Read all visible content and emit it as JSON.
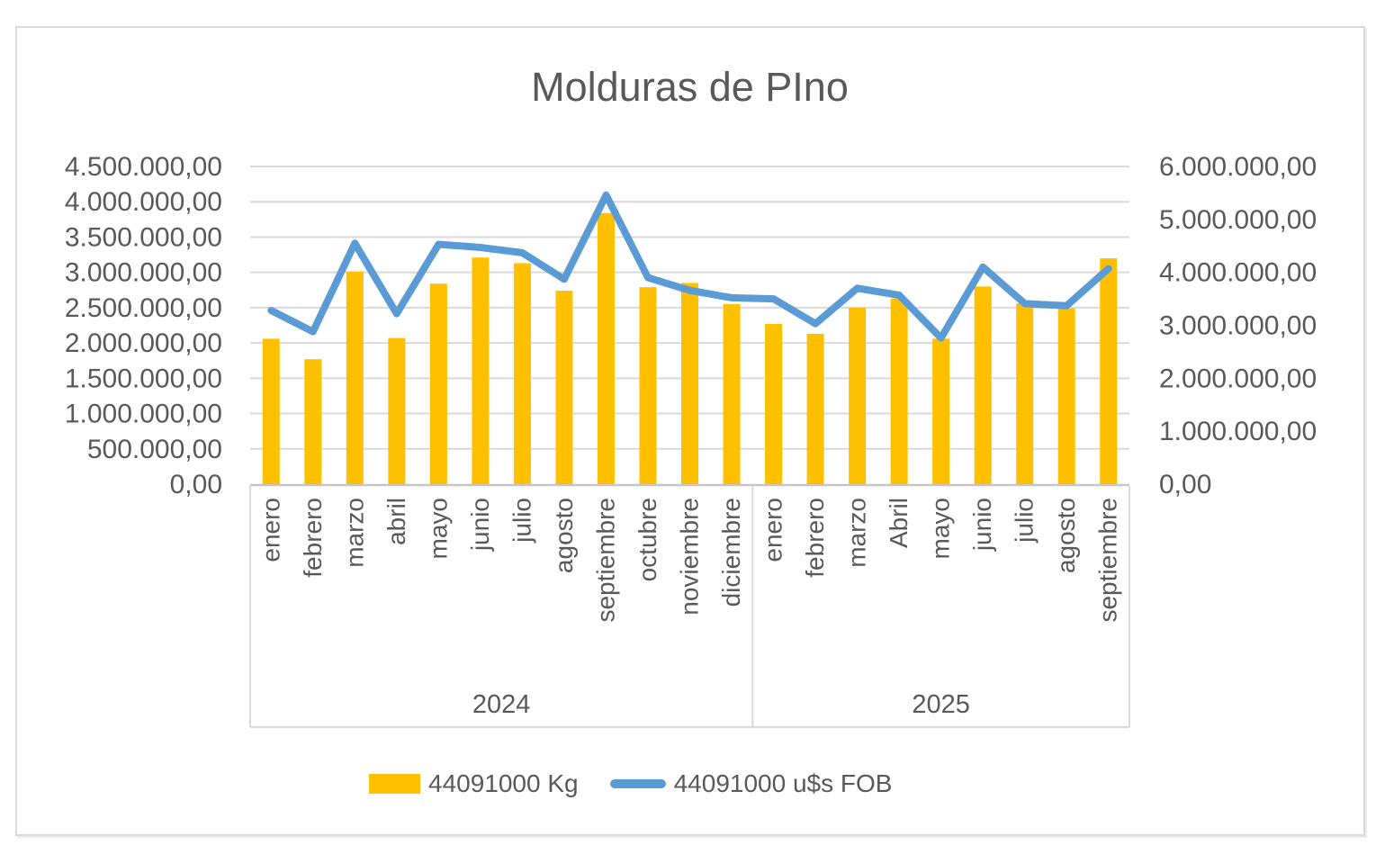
{
  "window": {
    "background": "#FFFFFF",
    "frame_border_color": "#D9D9D9"
  },
  "chart_data": {
    "type": "bar",
    "subtype": "combo bar+line, dual value axes, grouped category axis",
    "title": "Molduras de PIno",
    "categories": [
      "enero",
      "febrero",
      "marzo",
      "abril",
      "mayo",
      "junio",
      "julio",
      "agosto",
      "septiembre",
      "octubre",
      "noviembre",
      "diciembre",
      "enero",
      "febrero",
      "marzo",
      "Abril",
      "mayo",
      "junio",
      "julio",
      "agosto",
      "septiembre"
    ],
    "category_groups": [
      {
        "label": "2024",
        "span": 12
      },
      {
        "label": "2025",
        "span": 9
      }
    ],
    "series": [
      {
        "name": "44091000 Kg",
        "type": "bar",
        "axis": "left",
        "color": "#FFC000",
        "values": [
          2060000,
          1770000,
          3010000,
          2070000,
          2840000,
          3210000,
          3130000,
          2740000,
          3840000,
          2790000,
          2850000,
          2550000,
          2270000,
          2130000,
          2500000,
          2630000,
          2060000,
          2800000,
          2560000,
          2490000,
          3200000
        ]
      },
      {
        "name": "44091000 u$s FOB",
        "type": "line",
        "axis": "right",
        "color": "#5B9BD5",
        "values": [
          3280000,
          2880000,
          4550000,
          3220000,
          4530000,
          4470000,
          4370000,
          3870000,
          5460000,
          3900000,
          3660000,
          3520000,
          3500000,
          3030000,
          3700000,
          3570000,
          2760000,
          4100000,
          3410000,
          3370000,
          4070000
        ]
      }
    ],
    "left_axis": {
      "min": 0,
      "max": 4500000,
      "step": 500000,
      "tick_labels": [
        "4.500.000,00",
        "4.000.000,00",
        "3.500.000,00",
        "3.000.000,00",
        "2.500.000,00",
        "2.000.000,00",
        "1.500.000,00",
        "1.000.000,00",
        "500.000,00",
        "0,00"
      ]
    },
    "right_axis": {
      "min": 0,
      "max": 6000000,
      "step": 1000000,
      "tick_labels": [
        "6.000.000,00",
        "5.000.000,00",
        "4.000.000,00",
        "3.000.000,00",
        "2.000.000,00",
        "1.000.000,00",
        "0,00"
      ]
    },
    "grid": {
      "show": true,
      "color": "#D9D9D9"
    },
    "axis_line_color": "#C6C6C6",
    "text_color": "#595959",
    "legend_position": "bottom"
  },
  "legend": {
    "items": [
      {
        "label": "44091000 Kg",
        "swatch": "rect",
        "color": "#FFC000"
      },
      {
        "label": "44091000 u$s FOB",
        "swatch": "line",
        "color": "#5B9BD5"
      }
    ]
  }
}
